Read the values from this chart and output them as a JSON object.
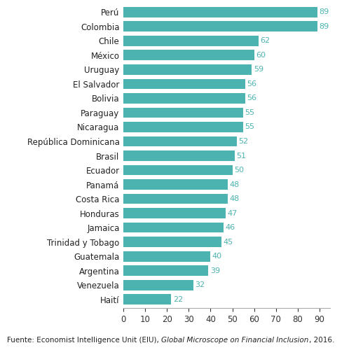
{
  "countries": [
    "Perú",
    "Colombia",
    "Chile",
    "México",
    "Uruguay",
    "El Salvador",
    "Bolivia",
    "Paraguay",
    "Nicaragua",
    "República Dominicana",
    "Brasil",
    "Ecuador",
    "Panamá",
    "Costa Rica",
    "Honduras",
    "Jamaica",
    "Trinidad y Tobago",
    "Guatemala",
    "Argentina",
    "Venezuela",
    "Haití"
  ],
  "values": [
    89,
    89,
    62,
    60,
    59,
    56,
    56,
    55,
    55,
    52,
    51,
    50,
    48,
    48,
    47,
    46,
    45,
    40,
    39,
    32,
    22
  ],
  "bar_color": "#4db3b0",
  "value_color": "#4db3b0",
  "label_color": "#222222",
  "background_color": "#ffffff",
  "xlim": [
    0,
    95
  ],
  "xticks": [
    0,
    10,
    20,
    30,
    40,
    50,
    60,
    70,
    80,
    90
  ],
  "footnote_regular": "Fuente: Economist Intelligence Unit (EIU), ",
  "footnote_italic": "Global Microscope on Financial Inclusion",
  "footnote_end": ", 2016.",
  "bar_height": 0.72,
  "value_fontsize": 8,
  "label_fontsize": 8.5,
  "tick_fontsize": 8.5
}
